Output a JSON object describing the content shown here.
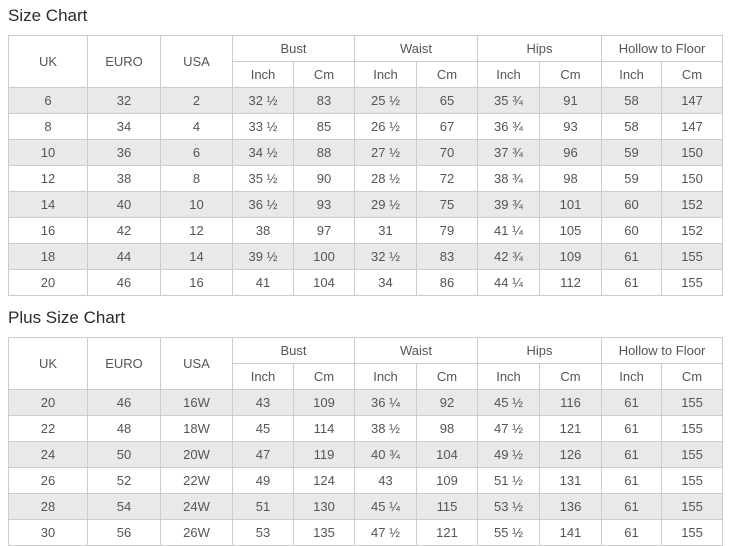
{
  "colors": {
    "border": "#cccccc",
    "stripe": "#e9e9e9",
    "text": "#555555",
    "title": "#2b2b2b",
    "background": "#ffffff"
  },
  "chart_data": [
    {
      "type": "table",
      "title": "Size Chart",
      "column_groups": [
        {
          "label": "UK",
          "span": 1
        },
        {
          "label": "EURO",
          "span": 1
        },
        {
          "label": "USA",
          "span": 1
        },
        {
          "label": "Bust",
          "span": 2
        },
        {
          "label": "Waist",
          "span": 2
        },
        {
          "label": "Hips",
          "span": 2
        },
        {
          "label": "Hollow to Floor",
          "span": 2
        }
      ],
      "sub_headers": [
        "Inch",
        "Cm",
        "Inch",
        "Cm",
        "Inch",
        "Cm",
        "Inch",
        "Cm"
      ],
      "rows": [
        [
          "6",
          "32",
          "2",
          "32 ½",
          "83",
          "25 ½",
          "65",
          "35 ¾",
          "91",
          "58",
          "147"
        ],
        [
          "8",
          "34",
          "4",
          "33 ½",
          "85",
          "26 ½",
          "67",
          "36 ¾",
          "93",
          "58",
          "147"
        ],
        [
          "10",
          "36",
          "6",
          "34 ½",
          "88",
          "27 ½",
          "70",
          "37 ¾",
          "96",
          "59",
          "150"
        ],
        [
          "12",
          "38",
          "8",
          "35 ½",
          "90",
          "28 ½",
          "72",
          "38 ¾",
          "98",
          "59",
          "150"
        ],
        [
          "14",
          "40",
          "10",
          "36 ½",
          "93",
          "29 ½",
          "75",
          "39 ¾",
          "101",
          "60",
          "152"
        ],
        [
          "16",
          "42",
          "12",
          "38",
          "97",
          "31",
          "79",
          "41 ¼",
          "105",
          "60",
          "152"
        ],
        [
          "18",
          "44",
          "14",
          "39 ½",
          "100",
          "32 ½",
          "83",
          "42 ¾",
          "109",
          "61",
          "155"
        ],
        [
          "20",
          "46",
          "16",
          "41",
          "104",
          "34",
          "86",
          "44 ¼",
          "112",
          "61",
          "155"
        ]
      ]
    },
    {
      "type": "table",
      "title": "Plus Size Chart",
      "column_groups": [
        {
          "label": "UK",
          "span": 1
        },
        {
          "label": "EURO",
          "span": 1
        },
        {
          "label": "USA",
          "span": 1
        },
        {
          "label": "Bust",
          "span": 2
        },
        {
          "label": "Waist",
          "span": 2
        },
        {
          "label": "Hips",
          "span": 2
        },
        {
          "label": "Hollow to Floor",
          "span": 2
        }
      ],
      "sub_headers": [
        "Inch",
        "Cm",
        "Inch",
        "Cm",
        "Inch",
        "Cm",
        "Inch",
        "Cm"
      ],
      "rows": [
        [
          "20",
          "46",
          "16W",
          "43",
          "109",
          "36 ¼",
          "92",
          "45 ½",
          "116",
          "61",
          "155"
        ],
        [
          "22",
          "48",
          "18W",
          "45",
          "114",
          "38 ½",
          "98",
          "47 ½",
          "121",
          "61",
          "155"
        ],
        [
          "24",
          "50",
          "20W",
          "47",
          "119",
          "40 ¾",
          "104",
          "49 ½",
          "126",
          "61",
          "155"
        ],
        [
          "26",
          "52",
          "22W",
          "49",
          "124",
          "43",
          "109",
          "51 ½",
          "131",
          "61",
          "155"
        ],
        [
          "28",
          "54",
          "24W",
          "51",
          "130",
          "45 ¼",
          "115",
          "53 ½",
          "136",
          "61",
          "155"
        ],
        [
          "30",
          "56",
          "26W",
          "53",
          "135",
          "47 ½",
          "121",
          "55 ½",
          "141",
          "61",
          "155"
        ]
      ]
    }
  ]
}
